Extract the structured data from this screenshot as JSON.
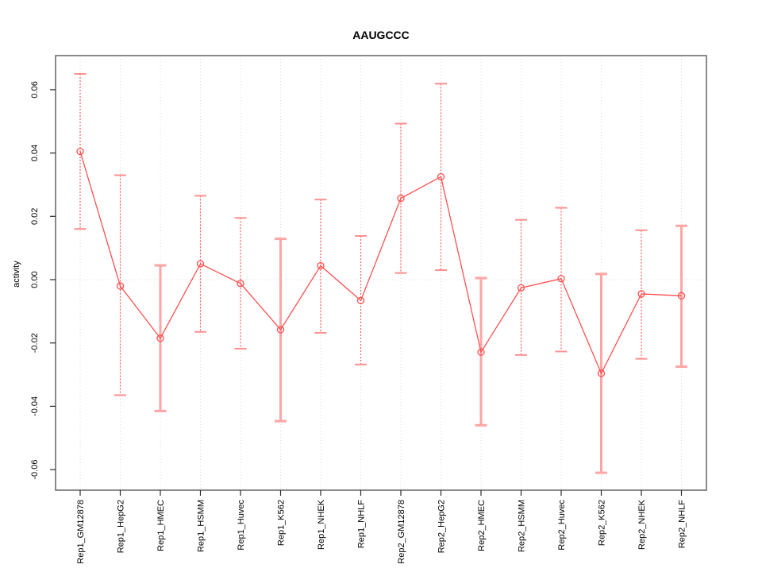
{
  "chart_data": {
    "type": "line",
    "title": "AAUGCCC",
    "xlabel": "",
    "ylabel": "activity",
    "legend": "none",
    "grid": "dotted vertical gridline at each category; dotted horizontal line at y=0",
    "ylim": [
      -0.0665,
      0.0705
    ],
    "yticks": [
      -0.06,
      -0.04,
      -0.02,
      0,
      0.02,
      0.04,
      0.06
    ],
    "ytick_labels": [
      "-0.06",
      "-0.04",
      "-0.02",
      "0.00",
      "0.02",
      "0.04",
      "0.06"
    ],
    "marker": "open-circle",
    "points": [
      {
        "label": "Rep1_GM12878",
        "value": 0.0405,
        "ci_low": 0.016,
        "ci_high": 0.065,
        "bar_style": "thin"
      },
      {
        "label": "Rep1_HepG2",
        "value": -0.002,
        "ci_low": -0.0365,
        "ci_high": 0.033,
        "bar_style": "thin"
      },
      {
        "label": "Rep1_HMEC",
        "value": -0.0185,
        "ci_low": -0.0415,
        "ci_high": 0.0045,
        "bar_style": "thick"
      },
      {
        "label": "Rep1_HSMM",
        "value": 0.005,
        "ci_low": -0.0165,
        "ci_high": 0.0265,
        "bar_style": "thin"
      },
      {
        "label": "Rep1_Huvec",
        "value": -0.0012,
        "ci_low": -0.0218,
        "ci_high": 0.0195,
        "bar_style": "thin"
      },
      {
        "label": "Rep1_K562",
        "value": -0.0158,
        "ci_low": -0.0447,
        "ci_high": 0.0129,
        "bar_style": "thick"
      },
      {
        "label": "Rep1_NHEK",
        "value": 0.0044,
        "ci_low": -0.0168,
        "ci_high": 0.0253,
        "bar_style": "thin"
      },
      {
        "label": "Rep1_NHLF",
        "value": -0.0066,
        "ci_low": -0.0268,
        "ci_high": 0.0138,
        "bar_style": "thin"
      },
      {
        "label": "Rep2_GM12878",
        "value": 0.0257,
        "ci_low": 0.0021,
        "ci_high": 0.0493,
        "bar_style": "thin"
      },
      {
        "label": "Rep2_HepG2",
        "value": 0.0325,
        "ci_low": 0.003,
        "ci_high": 0.0619,
        "bar_style": "thin"
      },
      {
        "label": "Rep2_HMEC",
        "value": -0.0229,
        "ci_low": -0.046,
        "ci_high": 0.0005,
        "bar_style": "thick"
      },
      {
        "label": "Rep2_HSMM",
        "value": -0.0026,
        "ci_low": -0.0238,
        "ci_high": 0.0189,
        "bar_style": "thin"
      },
      {
        "label": "Rep2_Huvec",
        "value": 0.0003,
        "ci_low": -0.0227,
        "ci_high": 0.0227,
        "bar_style": "thin"
      },
      {
        "label": "Rep2_K562",
        "value": -0.0296,
        "ci_low": -0.061,
        "ci_high": 0.0018,
        "bar_style": "thick"
      },
      {
        "label": "Rep2_NHEK",
        "value": -0.0045,
        "ci_low": -0.025,
        "ci_high": 0.0156,
        "bar_style": "thin"
      },
      {
        "label": "Rep2_NHLF",
        "value": -0.0051,
        "ci_low": -0.0275,
        "ci_high": 0.017,
        "bar_style": "thick"
      }
    ],
    "colors": {
      "line": "#ff5050",
      "marker": "#ff5050",
      "error_bar_thin": "#ff5f5f",
      "error_bar_thin_cap": "#ff9090",
      "error_bar_thick": "#ffa5a5",
      "grid": "#dbdbdb",
      "box": "#6e6e6e",
      "tick": "#2b2b2b",
      "text": "#000000",
      "background": "#ffffff"
    }
  }
}
